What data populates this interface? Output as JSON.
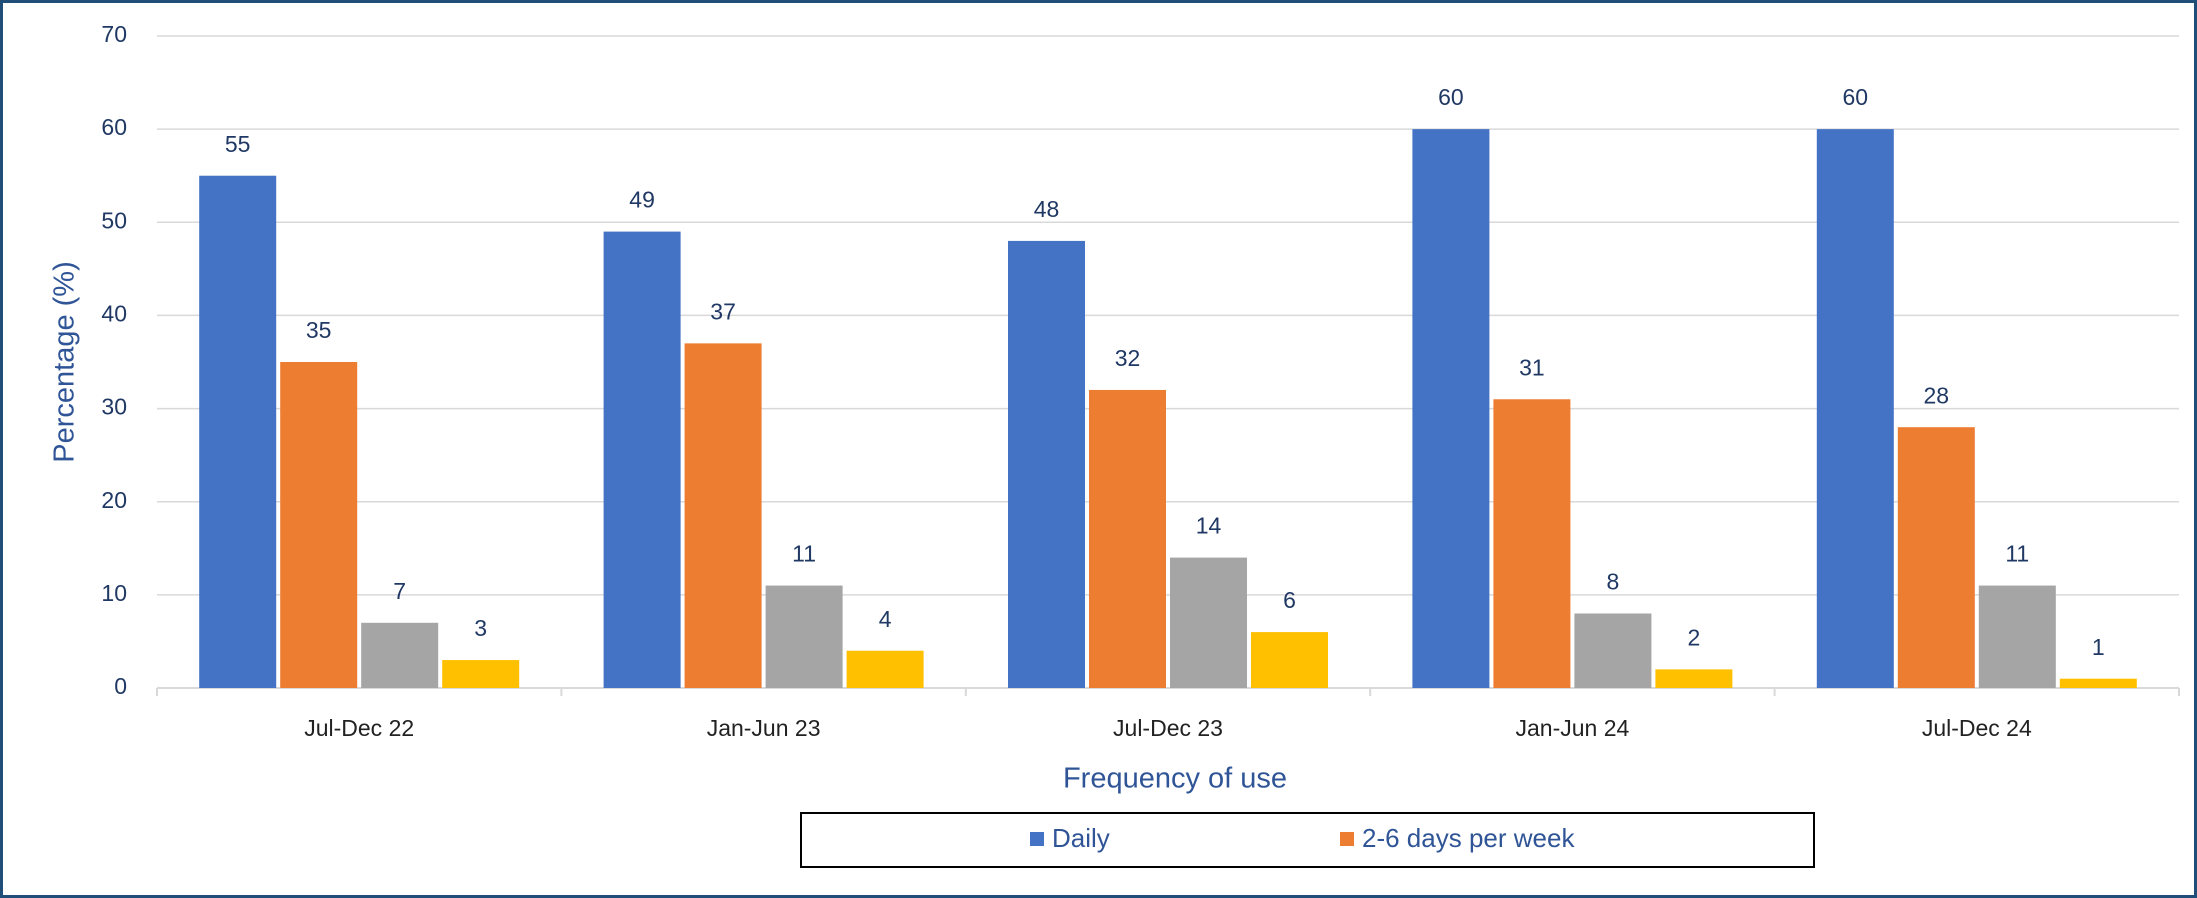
{
  "chart_data": {
    "type": "bar",
    "x_label": "Frequency of use",
    "y_label": "Percentage (%)",
    "categories": [
      "Jul-Dec 22",
      "Jan-Jun 23",
      "Jul-Dec 23",
      "Jan-Jun 24",
      "Jul-Dec 24"
    ],
    "series": [
      {
        "name": "Daily",
        "color": "#4472c4",
        "values": [
          55,
          49,
          48,
          60,
          60
        ]
      },
      {
        "name": "2-6 days per week",
        "color": "#ed7d31",
        "values": [
          35,
          37,
          32,
          31,
          28
        ]
      },
      {
        "color": "#a5a5a5",
        "values": [
          7,
          11,
          14,
          8,
          11
        ]
      },
      {
        "color": "#ffc000",
        "values": [
          3,
          4,
          6,
          2,
          1
        ]
      }
    ],
    "ylim": [
      0,
      70
    ],
    "yticks": [
      0,
      10,
      20,
      30,
      40,
      50,
      60,
      70
    ],
    "grid": true,
    "legend": "bottom"
  }
}
